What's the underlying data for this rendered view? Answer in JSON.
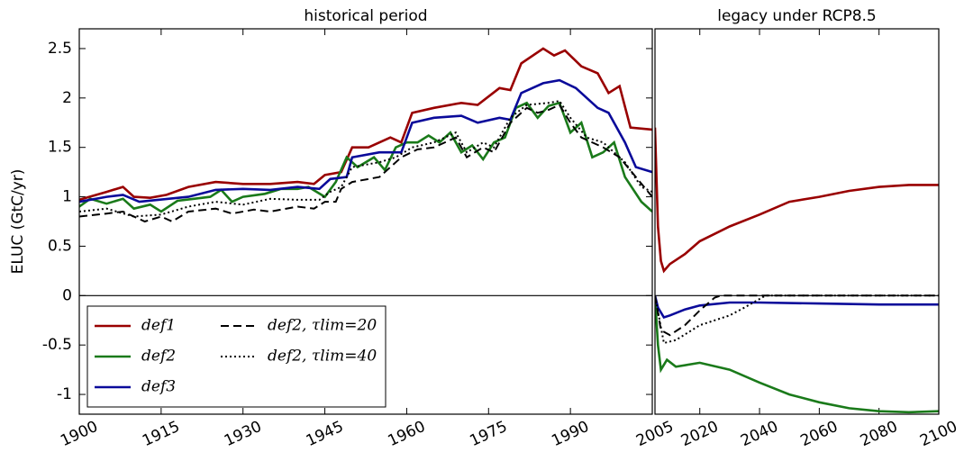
{
  "chart_data": [
    {
      "type": "line",
      "title": "historical period",
      "y_label": "ELUC (GtC/yr)",
      "xlim": [
        1900,
        2005
      ],
      "xticks": [
        1900,
        1915,
        1930,
        1945,
        1960,
        1975,
        1990
      ],
      "ylim": [
        -1.2,
        2.7
      ],
      "yticks": [
        -1.0,
        -0.5,
        0.0,
        0.5,
        1.0,
        1.5,
        2.0,
        2.5
      ],
      "reference_line": 0,
      "legend": "lower left",
      "series": [
        {
          "name": "def1",
          "color": "#990000",
          "linestyle": "solid",
          "x": [
            1900,
            1905,
            1908,
            1910,
            1913,
            1916,
            1920,
            1925,
            1930,
            1935,
            1940,
            1943,
            1945,
            1948,
            1950,
            1953,
            1957,
            1959,
            1961,
            1965,
            1970,
            1973,
            1977,
            1979,
            1981,
            1985,
            1987,
            1989,
            1992,
            1995,
            1997,
            1999,
            2001,
            2005
          ],
          "values": [
            0.97,
            1.05,
            1.1,
            1.0,
            0.99,
            1.02,
            1.1,
            1.15,
            1.13,
            1.13,
            1.15,
            1.13,
            1.22,
            1.25,
            1.5,
            1.5,
            1.6,
            1.55,
            1.85,
            1.9,
            1.95,
            1.93,
            2.1,
            2.08,
            2.35,
            2.5,
            2.43,
            2.48,
            2.32,
            2.25,
            2.05,
            2.12,
            1.7,
            1.68
          ]
        },
        {
          "name": "def2",
          "color": "#1a7a1a",
          "linestyle": "solid",
          "x": [
            1900,
            1902,
            1905,
            1908,
            1910,
            1913,
            1915,
            1918,
            1921,
            1924,
            1926,
            1928,
            1930,
            1934,
            1937,
            1940,
            1942,
            1945,
            1947,
            1949,
            1951,
            1954,
            1956,
            1958,
            1960,
            1962,
            1964,
            1966,
            1968,
            1970,
            1972,
            1974,
            1976,
            1978,
            1980,
            1982,
            1984,
            1986,
            1988,
            1990,
            1992,
            1994,
            1996,
            1998,
            2000,
            2003,
            2005
          ],
          "values": [
            0.9,
            0.98,
            0.93,
            0.98,
            0.88,
            0.92,
            0.85,
            0.96,
            0.98,
            1.0,
            1.07,
            0.95,
            1.0,
            1.03,
            1.08,
            1.08,
            1.1,
            1.0,
            1.15,
            1.4,
            1.3,
            1.4,
            1.27,
            1.5,
            1.55,
            1.55,
            1.62,
            1.55,
            1.65,
            1.45,
            1.52,
            1.38,
            1.55,
            1.6,
            1.9,
            1.95,
            1.8,
            1.92,
            1.95,
            1.65,
            1.75,
            1.4,
            1.45,
            1.55,
            1.2,
            0.95,
            0.85
          ]
        },
        {
          "name": "def3",
          "color": "#0a0a9a",
          "linestyle": "solid",
          "x": [
            1900,
            1905,
            1908,
            1911,
            1920,
            1925,
            1930,
            1935,
            1940,
            1944,
            1946,
            1949,
            1950,
            1955,
            1959,
            1961,
            1965,
            1970,
            1973,
            1977,
            1979,
            1981,
            1985,
            1988,
            1991,
            1995,
            1997,
            2000,
            2002,
            2005
          ],
          "values": [
            0.95,
            1.0,
            1.02,
            0.95,
            1.0,
            1.07,
            1.08,
            1.07,
            1.1,
            1.08,
            1.18,
            1.2,
            1.4,
            1.45,
            1.45,
            1.75,
            1.8,
            1.82,
            1.75,
            1.8,
            1.78,
            2.05,
            2.15,
            2.18,
            2.1,
            1.9,
            1.85,
            1.55,
            1.3,
            1.25
          ]
        },
        {
          "name": "def2, τlim=20",
          "color": "#000000",
          "linestyle": "dashed",
          "x": [
            1900,
            1905,
            1908,
            1912,
            1915,
            1917,
            1920,
            1925,
            1928,
            1932,
            1935,
            1940,
            1943,
            1945,
            1947,
            1948,
            1950,
            1955,
            1957,
            1959,
            1962,
            1965,
            1969,
            1971,
            1974,
            1976,
            1979,
            1982,
            1984,
            1986,
            1988,
            1990,
            1992,
            1996,
            1999,
            2002,
            2005
          ],
          "values": [
            0.8,
            0.83,
            0.85,
            0.75,
            0.8,
            0.75,
            0.85,
            0.88,
            0.83,
            0.87,
            0.85,
            0.9,
            0.88,
            0.95,
            0.95,
            1.08,
            1.15,
            1.2,
            1.3,
            1.4,
            1.48,
            1.5,
            1.6,
            1.4,
            1.5,
            1.45,
            1.75,
            1.9,
            1.85,
            1.88,
            1.93,
            1.75,
            1.6,
            1.5,
            1.4,
            1.2,
            1.0
          ]
        },
        {
          "name": "def2, τlim=40",
          "color": "#000000",
          "linestyle": "dotted",
          "x": [
            1900,
            1905,
            1910,
            1915,
            1920,
            1925,
            1930,
            1935,
            1940,
            1944,
            1946,
            1948,
            1950,
            1955,
            1958,
            1961,
            1965,
            1969,
            1971,
            1974,
            1976,
            1979,
            1982,
            1986,
            1988,
            1990,
            1993,
            1996,
            2000,
            2003,
            2005
          ],
          "values": [
            0.85,
            0.88,
            0.8,
            0.82,
            0.9,
            0.95,
            0.92,
            0.98,
            0.97,
            0.97,
            1.05,
            1.1,
            1.3,
            1.35,
            1.4,
            1.5,
            1.55,
            1.65,
            1.45,
            1.55,
            1.5,
            1.8,
            1.93,
            1.95,
            1.97,
            1.8,
            1.6,
            1.55,
            1.35,
            1.1,
            1.05
          ]
        }
      ]
    },
    {
      "type": "line",
      "title": "legacy under RCP8.5",
      "xlim": [
        2005,
        2100
      ],
      "xticks": [
        2005,
        2020,
        2040,
        2060,
        2080,
        2100
      ],
      "ylim": [
        -1.2,
        2.7
      ],
      "reference_line": 0,
      "series": [
        {
          "color": "#990000",
          "linestyle": "solid",
          "x": [
            2005,
            2006,
            2007,
            2008,
            2010,
            2015,
            2020,
            2030,
            2040,
            2050,
            2060,
            2070,
            2080,
            2090,
            2100
          ],
          "values": [
            1.7,
            0.7,
            0.35,
            0.25,
            0.32,
            0.42,
            0.55,
            0.7,
            0.82,
            0.95,
            1.0,
            1.06,
            1.1,
            1.12,
            1.12
          ]
        },
        {
          "color": "#1a7a1a",
          "linestyle": "solid",
          "x": [
            2005,
            2006,
            2007,
            2009,
            2012,
            2020,
            2030,
            2040,
            2050,
            2060,
            2070,
            2080,
            2090,
            2100
          ],
          "values": [
            0.0,
            -0.5,
            -0.75,
            -0.65,
            -0.72,
            -0.68,
            -0.75,
            -0.88,
            -1.0,
            -1.08,
            -1.14,
            -1.17,
            -1.18,
            -1.17
          ]
        },
        {
          "color": "#0a0a9a",
          "linestyle": "solid",
          "x": [
            2005,
            2006,
            2008,
            2010,
            2015,
            2020,
            2030,
            2040,
            2060,
            2080,
            2100
          ],
          "values": [
            0.0,
            -0.12,
            -0.22,
            -0.2,
            -0.14,
            -0.1,
            -0.07,
            -0.07,
            -0.08,
            -0.09,
            -0.09
          ]
        },
        {
          "color": "#000000",
          "linestyle": "dashed",
          "x": [
            2005,
            2007,
            2010,
            2015,
            2020,
            2025,
            2027,
            2100
          ],
          "values": [
            0.0,
            -0.35,
            -0.4,
            -0.3,
            -0.15,
            -0.02,
            0.0,
            0.0
          ]
        },
        {
          "color": "#000000",
          "linestyle": "dotted",
          "x": [
            2005,
            2008,
            2012,
            2020,
            2030,
            2035,
            2042,
            2100
          ],
          "values": [
            0.0,
            -0.48,
            -0.45,
            -0.3,
            -0.2,
            -0.12,
            0.0,
            0.0
          ]
        }
      ]
    }
  ]
}
